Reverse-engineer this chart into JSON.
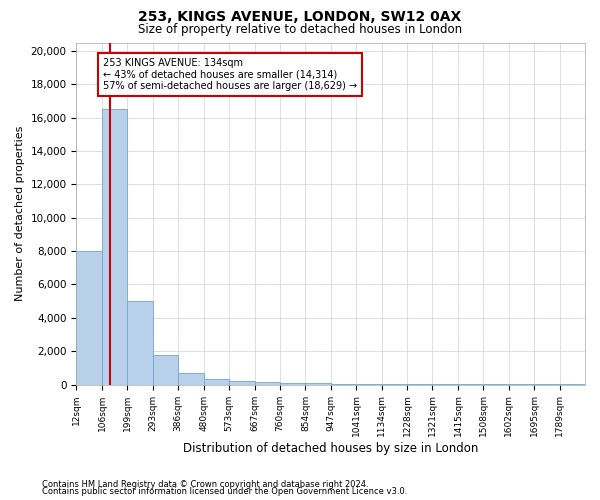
{
  "title1": "253, KINGS AVENUE, LONDON, SW12 0AX",
  "title2": "Size of property relative to detached houses in London",
  "xlabel": "Distribution of detached houses by size in London",
  "ylabel": "Number of detached properties",
  "annotation_title": "253 KINGS AVENUE: 134sqm",
  "annotation_line1": "← 43% of detached houses are smaller (14,314)",
  "annotation_line2": "57% of semi-detached houses are larger (18,629) →",
  "property_line_x": 134,
  "footer1": "Contains HM Land Registry data © Crown copyright and database right 2024.",
  "footer2": "Contains public sector information licensed under the Open Government Licence v3.0.",
  "bin_edges": [
    12,
    106,
    199,
    293,
    386,
    480,
    573,
    667,
    760,
    854,
    947,
    1041,
    1134,
    1228,
    1321,
    1415,
    1508,
    1602,
    1695,
    1789,
    1882
  ],
  "bin_heights": [
    8000,
    16500,
    5000,
    1800,
    700,
    350,
    200,
    150,
    100,
    80,
    60,
    50,
    40,
    35,
    30,
    25,
    20,
    18,
    15,
    12
  ],
  "bar_color": "#b8d0ea",
  "bar_edge_color": "#6aaad4",
  "vline_color": "#cc0000",
  "annotation_box_edge": "#cc0000",
  "background_color": "#ffffff",
  "grid_color": "#d0d0e0",
  "ylim": [
    0,
    20500
  ],
  "yticks": [
    0,
    2000,
    4000,
    6000,
    8000,
    10000,
    12000,
    14000,
    16000,
    18000,
    20000
  ]
}
